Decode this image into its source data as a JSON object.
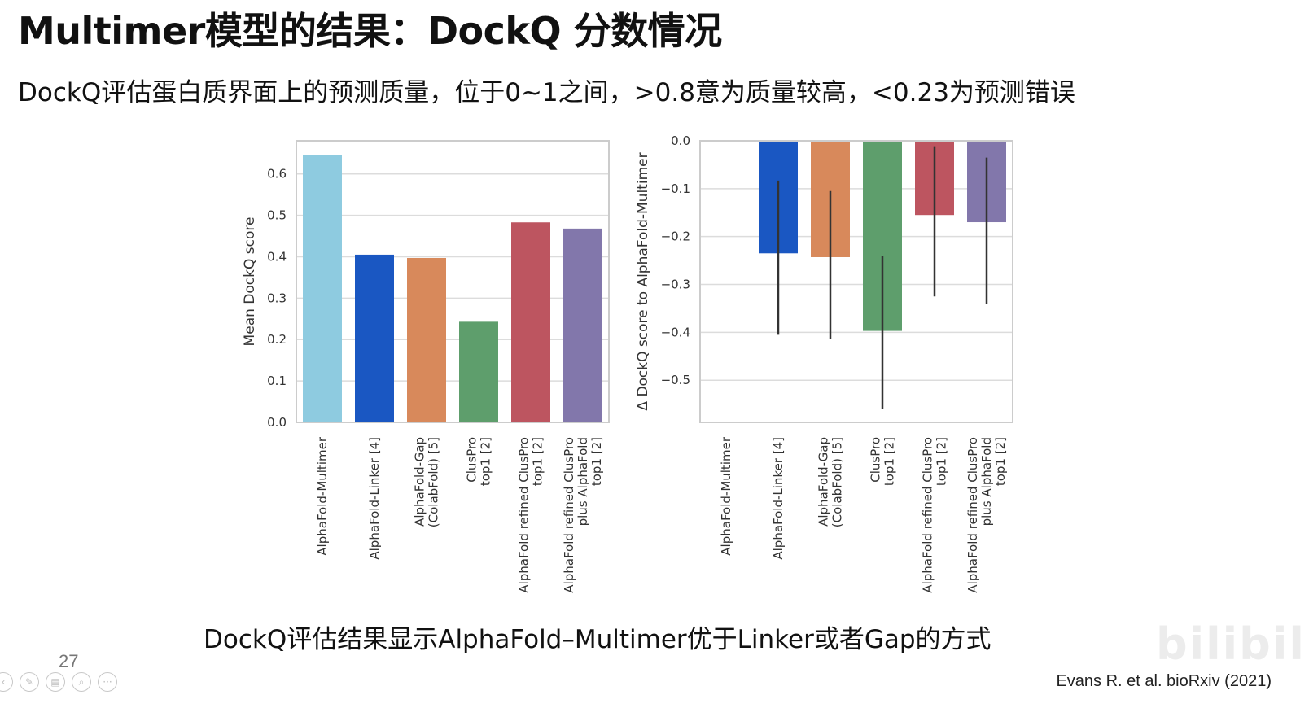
{
  "slide": {
    "title": "Multimer模型的结果：DockQ 分数情况",
    "subtitle": "DockQ评估蛋白质界面上的预测质量，位于0~1之间，>0.8意为质量较高，<0.23为预测错误",
    "caption": "DockQ评估结果显示AlphaFold–Multimer优于Linker或者Gap的方式",
    "citation": "Evans R. et al. bioRxiv (2021)",
    "page_number": "27",
    "watermark": "bilibili"
  },
  "toolbar": {
    "icons": [
      "back-icon",
      "pen-icon",
      "slides-icon",
      "zoom-icon",
      "more-icon"
    ],
    "glyphs": [
      "‹",
      "✎",
      "▤",
      "⌕",
      "···"
    ]
  },
  "chart_data": [
    {
      "type": "bar",
      "title": "",
      "xlabel": "",
      "ylabel": "Mean DockQ score",
      "ylim": [
        0,
        0.68
      ],
      "yticks": [
        "0.0",
        "0.1",
        "0.2",
        "0.3",
        "0.4",
        "0.5",
        "0.6"
      ],
      "grid": true,
      "categories": [
        [
          "AlphaFold-Multimer"
        ],
        [
          "AlphaFold-Linker [4]"
        ],
        [
          "AlphaFold-Gap",
          "(ColabFold) [5]"
        ],
        [
          "ClusPro",
          "top1 [2]"
        ],
        [
          "AlphaFold refined ClusPro",
          "top1 [2]"
        ],
        [
          "AlphaFold refined ClusPro",
          "plus AlphaFold",
          "top1 [2]"
        ]
      ],
      "values": [
        0.645,
        0.405,
        0.397,
        0.243,
        0.483,
        0.468
      ],
      "colors": [
        "#8ecbe0",
        "#1a57c2",
        "#d8895b",
        "#5e9e6c",
        "#bd5560",
        "#8277ab"
      ]
    },
    {
      "type": "bar",
      "title": "",
      "xlabel": "",
      "ylabel": "Δ DockQ score to AlphaFold-Multimer",
      "ylim": [
        -0.588,
        0.0
      ],
      "yticks": [
        "0.0",
        "−0.1",
        "−0.2",
        "−0.3",
        "−0.4",
        "−0.5"
      ],
      "grid": true,
      "categories": [
        [
          "AlphaFold-Multimer"
        ],
        [
          "AlphaFold-Linker [4]"
        ],
        [
          "AlphaFold-Gap",
          "(ColabFold) [5]"
        ],
        [
          "ClusPro",
          "top1 [2]"
        ],
        [
          "AlphaFold refined ClusPro",
          "top1 [2]"
        ],
        [
          "AlphaFold refined ClusPro",
          "plus AlphaFold",
          "top1 [2]"
        ]
      ],
      "values": [
        0.0,
        -0.235,
        -0.243,
        -0.397,
        -0.155,
        -0.17
      ],
      "error_low": [
        null,
        -0.405,
        -0.413,
        -0.56,
        -0.325,
        -0.34
      ],
      "error_high": [
        null,
        -0.083,
        -0.105,
        -0.24,
        -0.013,
        -0.035
      ],
      "colors": [
        "#8ecbe0",
        "#1a57c2",
        "#d8895b",
        "#5e9e6c",
        "#bd5560",
        "#8277ab"
      ]
    }
  ]
}
